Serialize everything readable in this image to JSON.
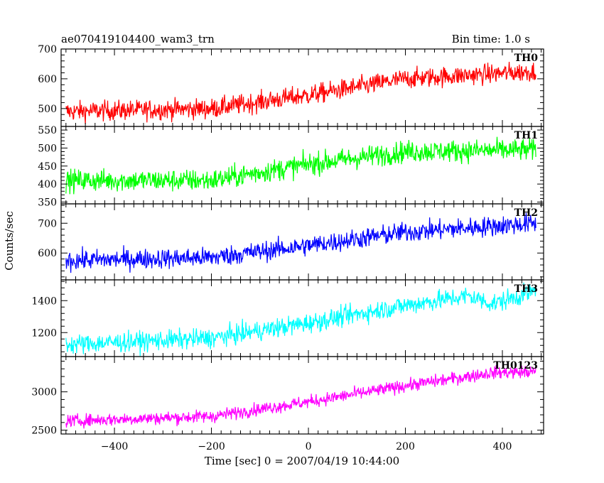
{
  "chart_data": {
    "type": "line",
    "title": "ae070419104400_wam3_trn",
    "bin_time_label": "Bin time: 1.0 s",
    "xlabel": "Time [sec] 0 = 2007/04/19 10:44:00",
    "ylabel": "Counts/sec",
    "xlim": [
      -510,
      485
    ],
    "x_range": [
      -500,
      469
    ],
    "x_ticks": [
      -400,
      -200,
      0,
      200,
      400
    ],
    "panels": [
      {
        "name": "TH0",
        "color": "#ff0000",
        "ylim": [
          440,
          700
        ],
        "y_ticks": [
          500,
          600,
          700
        ],
        "trend": [
          [
            -500,
            490
          ],
          [
            -200,
            500
          ],
          [
            0,
            545
          ],
          [
            200,
            600
          ],
          [
            469,
            625
          ]
        ],
        "noise": 60
      },
      {
        "name": "TH1",
        "color": "#00ff00",
        "ylim": [
          345,
          560
        ],
        "y_ticks": [
          350,
          400,
          450,
          500,
          550
        ],
        "trend": [
          [
            -500,
            410
          ],
          [
            -200,
            410
          ],
          [
            0,
            455
          ],
          [
            200,
            490
          ],
          [
            469,
            495
          ]
        ],
        "noise": 55
      },
      {
        "name": "TH2",
        "color": "#0000ff",
        "ylim": [
          510,
          765
        ],
        "y_ticks": [
          600,
          700
        ],
        "trend": [
          [
            -500,
            575
          ],
          [
            -200,
            585
          ],
          [
            0,
            625
          ],
          [
            200,
            670
          ],
          [
            469,
            700
          ]
        ],
        "noise": 60
      },
      {
        "name": "TH3",
        "color": "#00ffff",
        "ylim": [
          1050,
          1530
        ],
        "y_ticks": [
          1200,
          1400
        ],
        "trend": [
          [
            -500,
            1125
          ],
          [
            -200,
            1165
          ],
          [
            0,
            1260
          ],
          [
            200,
            1370
          ],
          [
            330,
            1430
          ],
          [
            380,
            1380
          ],
          [
            469,
            1460
          ]
        ],
        "noise": 110
      },
      {
        "name": "TH0123",
        "color": "#ff00ff",
        "ylim": [
          2450,
          3460
        ],
        "y_ticks": [
          2500,
          3000
        ],
        "trend": [
          [
            -500,
            2620
          ],
          [
            -200,
            2680
          ],
          [
            0,
            2870
          ],
          [
            200,
            3080
          ],
          [
            380,
            3250
          ],
          [
            469,
            3260
          ]
        ],
        "noise": 150
      }
    ]
  }
}
